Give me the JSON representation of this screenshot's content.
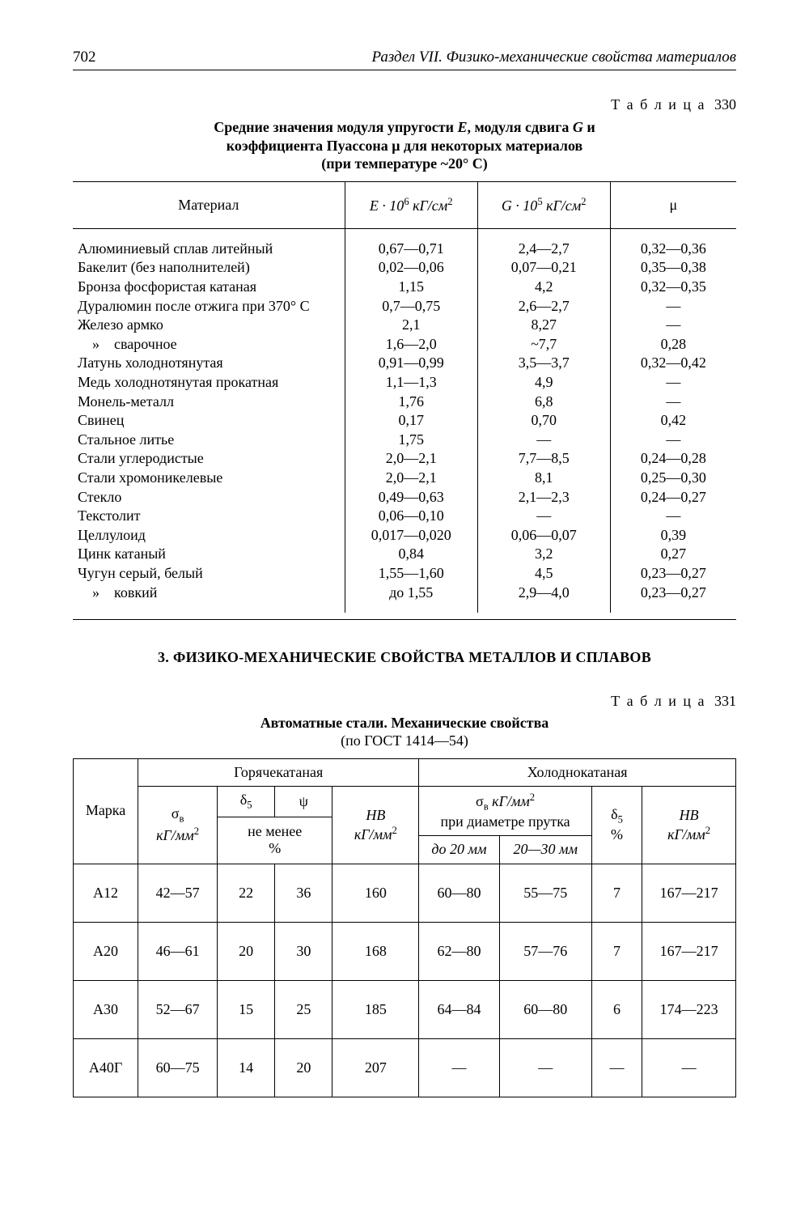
{
  "page_number": "702",
  "section_title": "Раздел VII. Физико-механические свойства материалов",
  "table330": {
    "label_prefix": "Т а б л и ц а",
    "number": "330",
    "caption_l1": "Средние значения модуля упругости ",
    "caption_E": "E",
    "caption_l1b": ", модуля сдвига ",
    "caption_G": "G",
    "caption_l1c": " и",
    "caption_l2a": "коэффициента Пуассона μ для некоторых материалов",
    "caption_l3": "(при температуре ~20° С)",
    "col0": "Материал",
    "col1_a": "E · 10",
    "col1_exp": "6",
    "col1_b": " кГ/см",
    "col1_exp2": "2",
    "col2_a": "G · 10",
    "col2_exp": "5",
    "col2_b": " кГ/см",
    "col2_exp2": "2",
    "col3": "μ",
    "rows": [
      {
        "m": "Алюминиевый сплав литейный",
        "e": "0,67—0,71",
        "g": "2,4—2,7",
        "mu": "0,32—0,36"
      },
      {
        "m": "Бакелит (без наполнителей)",
        "e": "0,02—0,06",
        "g": "0,07—0,21",
        "mu": "0,35—0,38"
      },
      {
        "m": "Бронза фосфористая катаная",
        "e": "1,15",
        "g": "4,2",
        "mu": "0,32—0,35"
      },
      {
        "m": "Дуралюмин после отжига при 370° С",
        "e": "0,7—0,75",
        "g": "2,6—2,7",
        "mu": "—"
      },
      {
        "m": "Железо армко",
        "e": "2,1",
        "g": "8,27",
        "mu": "—"
      },
      {
        "m": "    »    сварочное",
        "e": "1,6—2,0",
        "g": "~7,7",
        "mu": "0,28"
      },
      {
        "m": "Латунь холоднотянутая",
        "e": "0,91—0,99",
        "g": "3,5—3,7",
        "mu": "0,32—0,42"
      },
      {
        "m": "Медь холоднотянутая прокатная",
        "e": "1,1—1,3",
        "g": "4,9",
        "mu": "—"
      },
      {
        "m": "Монель-металл",
        "e": "1,76",
        "g": "6,8",
        "mu": "—"
      },
      {
        "m": "Свинец",
        "e": "0,17",
        "g": "0,70",
        "mu": "0,42"
      },
      {
        "m": "Стальное литье",
        "e": "1,75",
        "g": "—",
        "mu": "—"
      },
      {
        "m": "Стали углеродистые",
        "e": "2,0—2,1",
        "g": "7,7—8,5",
        "mu": "0,24—0,28"
      },
      {
        "m": "Стали хромоникелевые",
        "e": "2,0—2,1",
        "g": "8,1",
        "mu": "0,25—0,30"
      },
      {
        "m": "Стекло",
        "e": "0,49—0,63",
        "g": "2,1—2,3",
        "mu": "0,24—0,27"
      },
      {
        "m": "Текстолит",
        "e": "0,06—0,10",
        "g": "—",
        "mu": "—"
      },
      {
        "m": "Целлулоид",
        "e": "0,017—0,020",
        "g": "0,06—0,07",
        "mu": "0,39"
      },
      {
        "m": "Цинк катаный",
        "e": "0,84",
        "g": "3,2",
        "mu": "0,27"
      },
      {
        "m": "Чугун серый, белый",
        "e": "1,55—1,60",
        "g": "4,5",
        "mu": "0,23—0,27"
      },
      {
        "m": "    »    ковкий",
        "e": "до 1,55",
        "g": "2,9—4,0",
        "mu": "0,23—0,27"
      }
    ]
  },
  "section_heading": "3. ФИЗИКО-МЕХАНИЧЕСКИЕ СВОЙСТВА МЕТАЛЛОВ И СПЛАВОВ",
  "table331": {
    "label_prefix": "Т а б л и ц а",
    "number": "331",
    "caption": "Автоматные стали. Механические свойства",
    "subcaption": "(по ГОСТ 1414—54)",
    "h_marka": "Марка",
    "h_hot": "Горячекатаная",
    "h_cold": "Холоднокатаная",
    "h_sigma_b_1": "σ",
    "h_sigma_b_sub": "в",
    "h_sigma_b_units": "кГ/мм",
    "h_sigma_b_sup": "2",
    "h_d5": "δ",
    "h_d5_sub": "5",
    "h_psi": "ψ",
    "h_ne_menee": "не менее",
    "h_percent": "%",
    "h_HB_1": "HB",
    "h_HB_units": "кГ/мм",
    "h_HB_sup": "2",
    "h_sigma_cold_top_1": "σ",
    "h_sigma_cold_top_sub": "в",
    "h_sigma_cold_top_units": " кГ/мм",
    "h_sigma_cold_top_sup": "2",
    "h_sigma_diam": "при диаметре прутка",
    "h_d5_cold_1": "δ",
    "h_d5_cold_sub": "5",
    "h_d5_cold_pct": "%",
    "h_HB_cold_1": "HB",
    "h_HB_cold_units": "кГ/мм",
    "h_HB_cold_sup": "2",
    "h_diam20": "до 20 мм",
    "h_diam2030": "20—30 мм",
    "rows": [
      {
        "marka": "А12",
        "sb": "42—57",
        "d5": "22",
        "psi": "36",
        "hb": "160",
        "c20": "60—80",
        "c2030": "55—75",
        "cd5": "7",
        "chb": "167—217"
      },
      {
        "marka": "А20",
        "sb": "46—61",
        "d5": "20",
        "psi": "30",
        "hb": "168",
        "c20": "62—80",
        "c2030": "57—76",
        "cd5": "7",
        "chb": "167—217"
      },
      {
        "marka": "А30",
        "sb": "52—67",
        "d5": "15",
        "psi": "25",
        "hb": "185",
        "c20": "64—84",
        "c2030": "60—80",
        "cd5": "6",
        "chb": "174—223"
      },
      {
        "marka": "А40Г",
        "sb": "60—75",
        "d5": "14",
        "psi": "20",
        "hb": "207",
        "c20": "—",
        "c2030": "—",
        "cd5": "—",
        "chb": "—"
      }
    ]
  }
}
